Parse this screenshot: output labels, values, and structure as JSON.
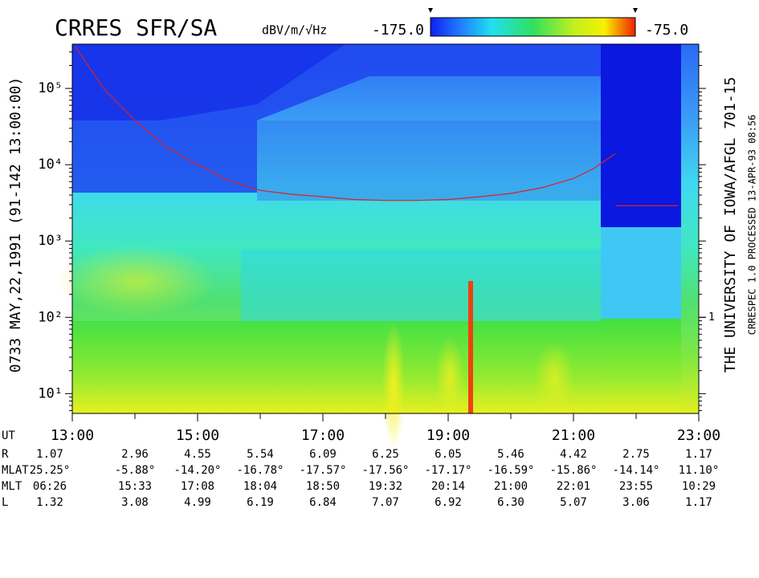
{
  "chart_data": {
    "type": "spectrogram",
    "title": "CRRES SFR/SA",
    "left_note": "0733 MAY,22,1991 (91-142 13:00:00)",
    "right_note": "THE UNIVERSITY OF IOWA/AFGL 701-15",
    "footer_note": "CRRESPEC 1.0   PROCESSED 13-APR-93   08:56",
    "colorbar": {
      "label": "dBV/m/√Hz",
      "lim": [
        -175,
        -75
      ],
      "ticks": [
        {
          "value": -175,
          "label": "-175.0"
        },
        {
          "value": -75,
          "label": "-75.0"
        }
      ]
    },
    "log_y": true,
    "xlim": [
      13,
      23
    ],
    "xticks": [
      {
        "value": 13,
        "label": "13:00"
      },
      {
        "value": 15,
        "label": "15:00"
      },
      {
        "value": 17,
        "label": "17:00"
      },
      {
        "value": 19,
        "label": "19:00"
      },
      {
        "value": 21,
        "label": "21:00"
      },
      {
        "value": 23,
        "label": "23:00"
      }
    ],
    "ylim": [
      5.5,
      380000
    ],
    "yticks": [
      {
        "value": 10,
        "label": "10¹"
      },
      {
        "value": 100,
        "label": "10²"
      },
      {
        "value": 1000,
        "label": "10³"
      },
      {
        "value": 10000,
        "label": "10⁴"
      },
      {
        "value": 100000,
        "label": "10⁵"
      }
    ],
    "y2lim": [
      0.055,
      3800
    ],
    "y2ticks": [
      1
    ],
    "lines": [
      {
        "color": "#e02020",
        "x": [
          13.05,
          13.5,
          14,
          14.5,
          15,
          15.5,
          16,
          16.5,
          17,
          17.5,
          18,
          18.5,
          19,
          19.5,
          20,
          20.5,
          21,
          21.33,
          21.67
        ],
        "values": [
          350000,
          100000,
          38000,
          17000,
          10000,
          6200,
          4600,
          4100,
          3800,
          3500,
          3400,
          3400,
          3500,
          3800,
          4200,
          5000,
          6600,
          9000,
          14000
        ]
      },
      {
        "color": "#e02020",
        "x": [
          21.67,
          22.67
        ],
        "values": [
          2900,
          2900
        ]
      }
    ],
    "x_label": "UT",
    "ephemeris": {
      "row_labels": [
        "R",
        "MLAT",
        "MLT",
        "L"
      ],
      "rows": [
        [
          "1.07",
          "2.96",
          "4.55",
          "5.54",
          "6.09",
          "6.25",
          "6.05",
          "5.46",
          "4.42",
          "2.75",
          "1.17"
        ],
        [
          "25.25°",
          "-5.88°",
          "-14.20°",
          "-16.78°",
          "-17.57°",
          "-17.56°",
          "-17.17°",
          "-16.59°",
          "-15.86°",
          "-14.14°",
          "11.10°"
        ],
        [
          "06:26",
          "15:33",
          "17:08",
          "18:04",
          "18:50",
          "19:32",
          "20:14",
          "21:00",
          "22:01",
          "23:55",
          "10:29"
        ],
        [
          "1.32",
          "3.08",
          "4.99",
          "6.19",
          "6.84",
          "7.07",
          "6.92",
          "6.30",
          "5.07",
          "3.06",
          "1.17"
        ]
      ]
    }
  }
}
